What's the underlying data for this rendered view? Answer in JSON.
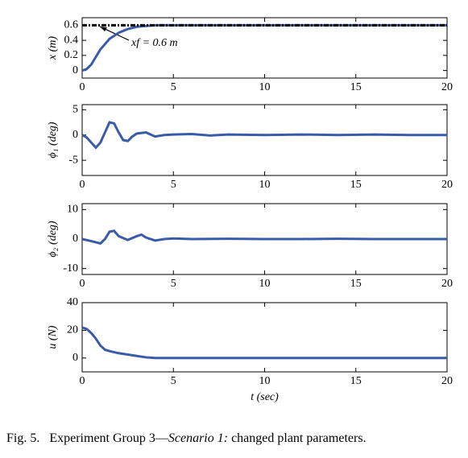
{
  "chart_data": [
    {
      "type": "line",
      "ylabel": "x (m)",
      "annotation": "xf = 0.6 m",
      "xlim": [
        0,
        20
      ],
      "xticks": [
        0,
        5,
        10,
        15,
        20
      ],
      "ylim": [
        -0.1,
        0.7
      ],
      "yticks": [
        0,
        0.2,
        0.4,
        0.6
      ],
      "series": [
        {
          "color": "#3a5ba8",
          "x": [
            0,
            0.25,
            0.5,
            0.75,
            1,
            1.5,
            2,
            2.5,
            3,
            3.5,
            4,
            5,
            10,
            15,
            20
          ],
          "values": [
            0,
            0.02,
            0.08,
            0.18,
            0.28,
            0.42,
            0.5,
            0.55,
            0.58,
            0.59,
            0.6,
            0.6,
            0.6,
            0.6,
            0.6
          ]
        },
        {
          "color": "#000000",
          "dash": true,
          "x": [
            0,
            20
          ],
          "values": [
            0.6,
            0.6
          ]
        }
      ]
    },
    {
      "type": "line",
      "ylabel": "ϕ₁ (deg)",
      "xlim": [
        0,
        20
      ],
      "xticks": [
        0,
        5,
        10,
        15,
        20
      ],
      "ylim": [
        -8,
        6
      ],
      "yticks": [
        -5,
        0,
        5
      ],
      "series": [
        {
          "color": "#3a5ba8",
          "x": [
            0,
            0.25,
            0.5,
            0.75,
            1,
            1.25,
            1.5,
            1.75,
            2,
            2.25,
            2.5,
            2.75,
            3,
            3.5,
            4,
            4.5,
            5,
            6,
            7,
            8,
            10,
            12,
            14,
            16,
            18,
            20
          ],
          "values": [
            0,
            -0.5,
            -1.5,
            -2.5,
            -1.5,
            0.5,
            2.5,
            2.3,
            0.5,
            -1,
            -1.2,
            -0.3,
            0.3,
            0.5,
            -0.3,
            0,
            0.1,
            0.2,
            -0.1,
            0.1,
            0,
            0.1,
            0,
            0.1,
            0,
            0
          ]
        }
      ]
    },
    {
      "type": "line",
      "ylabel": "ϕ₂ (deg)",
      "xlim": [
        0,
        20
      ],
      "xticks": [
        0,
        5,
        10,
        15,
        20
      ],
      "ylim": [
        -12,
        12
      ],
      "yticks": [
        -10,
        0,
        10
      ],
      "series": [
        {
          "color": "#3a5ba8",
          "x": [
            0,
            0.5,
            1,
            1.25,
            1.5,
            1.75,
            2,
            2.5,
            3,
            3.25,
            3.5,
            4,
            4.5,
            5,
            6,
            8,
            10,
            12,
            14,
            16,
            18,
            20
          ],
          "values": [
            0,
            -0.7,
            -1.5,
            0,
            2.5,
            2.8,
            1,
            -0.3,
            1,
            1.5,
            0.5,
            -0.5,
            0,
            0.2,
            0,
            0.1,
            0,
            0,
            0.1,
            0,
            0,
            0
          ]
        }
      ]
    },
    {
      "type": "line",
      "ylabel": "u (N)",
      "xlabel": "t (sec)",
      "xlim": [
        0,
        20
      ],
      "xticks": [
        0,
        5,
        10,
        15,
        20
      ],
      "ylim": [
        -10,
        40
      ],
      "yticks": [
        0,
        20,
        40
      ],
      "series": [
        {
          "color": "#3a5ba8",
          "x": [
            0,
            0.25,
            0.5,
            0.75,
            1,
            1.25,
            1.5,
            2,
            2.5,
            3,
            3.5,
            4,
            20
          ],
          "values": [
            22,
            21,
            18,
            14,
            9,
            6,
            5,
            3.5,
            2.5,
            1.5,
            0.5,
            0,
            0
          ]
        }
      ]
    }
  ],
  "caption": {
    "label": "Fig. 5.",
    "text": "Experiment Group 3—",
    "italic": "Scenario 1:",
    "rest": " changed plant parameters."
  }
}
